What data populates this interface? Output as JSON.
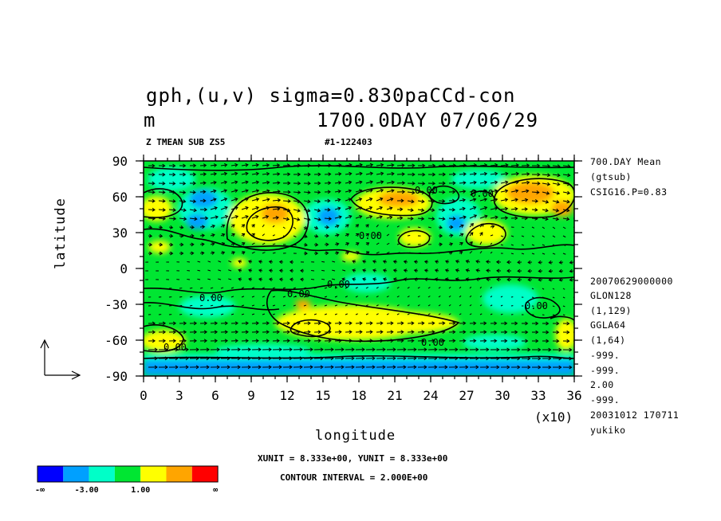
{
  "chart_data": {
    "type": "heatmap",
    "title_line1": "gph,(u,v) sigma=0.830paCCd-con",
    "title_line2_left": "m",
    "title_line2_right": "1700.0DAY 07/06/29",
    "subtitle_left": "Z TMEAN SUB ZS5",
    "subtitle_right": "#1-122403",
    "xlabel": "longitude",
    "ylabel": "latitude",
    "x_multiplier": "(x10)",
    "xlim": [
      0,
      36
    ],
    "ylim": [
      -90,
      90
    ],
    "x_ticks": [
      "0",
      "3",
      "6",
      "9",
      "12",
      "15",
      "18",
      "21",
      "24",
      "27",
      "30",
      "33",
      "36"
    ],
    "y_ticks": [
      "90",
      "60",
      "30",
      "0",
      "-30",
      "-60",
      "-90"
    ],
    "contour_labels": [
      "0.00",
      "0.00",
      "0.00",
      "0.00",
      "0.00",
      "0.00",
      "0.00",
      "0.00",
      "0.00"
    ],
    "color_levels": [
      {
        "label": "-∞",
        "color": "#0000ff"
      },
      {
        "label": "-3.00",
        "color": "#00a0ff"
      },
      {
        "label": "",
        "color": "#00ffc8"
      },
      {
        "label": "1.00",
        "color": "#00e632"
      },
      {
        "label": "",
        "color": "#ffff00"
      },
      {
        "label": "",
        "color": "#ffa500"
      },
      {
        "label": "∞",
        "color": "#ff0000"
      }
    ],
    "colorbar_labels": [
      "-∞",
      "-3.00",
      "1.00",
      "∞"
    ],
    "grid": false,
    "legend_placement": "bottom-left"
  },
  "side_info": [
    "700.DAY Mean",
    "(gtsub)",
    "CSIG16.P=0.83"
  ],
  "side_info_lower": [
    "20070629000000",
    "GLON128",
    "(1,129)",
    "GGLA64",
    "(1,64)",
    "-999.",
    "-999.",
    "2.00",
    "-999.",
    "20031012 170711",
    "yukiko"
  ],
  "footer": {
    "units": "XUNIT = 8.333e+00, YUNIT = 8.333e+00",
    "contour_interval": "CONTOUR INTERVAL = 2.000E+00"
  }
}
